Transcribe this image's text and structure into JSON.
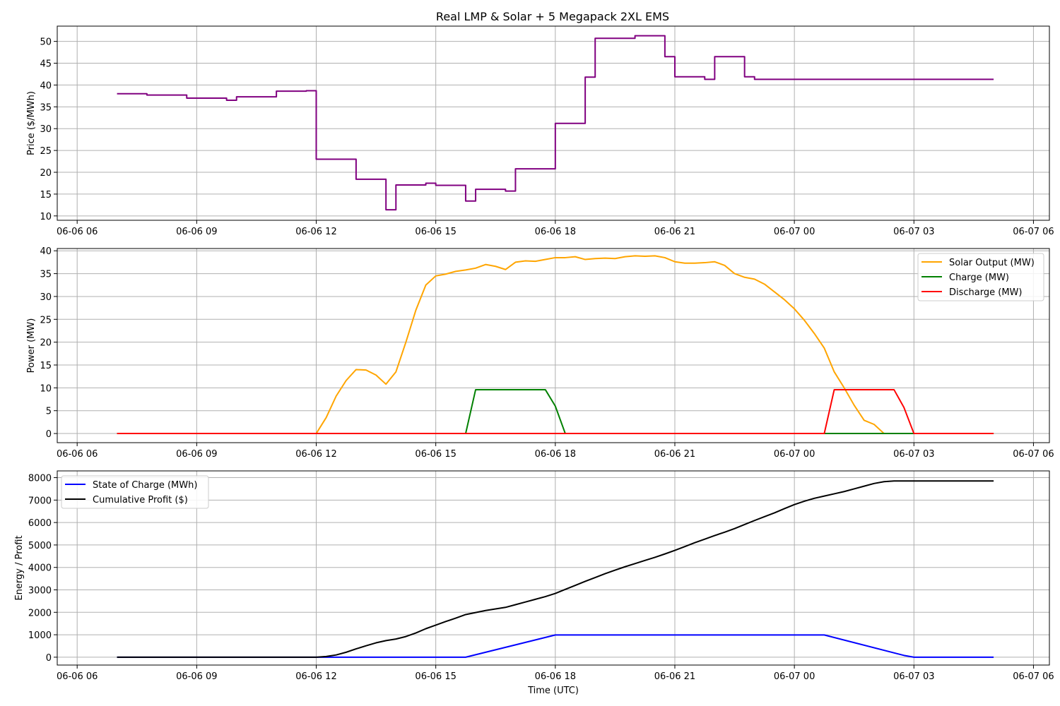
{
  "figure_title": "Real LMP & Solar + 5 Megapack 2XL EMS",
  "colors": {
    "price": "#800080",
    "solar": "#FFA500",
    "charge": "#008000",
    "discharge": "#FF0000",
    "soc": "#0000FF",
    "profit": "#000000",
    "grid": "#b0b0b0"
  },
  "chart_data": [
    {
      "type": "line",
      "title": "Real LMP & Solar + 5 Megapack 2XL EMS",
      "xlabel": "",
      "ylabel": "Price ($/MWh)",
      "x_unit": "hours from 06-06 06:00 UTC",
      "xlim": [
        -0.5,
        24.4
      ],
      "ylim": [
        9.0,
        53.5
      ],
      "x_ticks": [
        0,
        3,
        6,
        9,
        12,
        15,
        18,
        21,
        24
      ],
      "x_tick_labels": [
        "06-06 06",
        "06-06 09",
        "06-06 12",
        "06-06 15",
        "06-06 18",
        "06-06 21",
        "06-07 00",
        "06-07 03",
        "06-07 06"
      ],
      "y_ticks": [
        10,
        15,
        20,
        25,
        30,
        35,
        40,
        45,
        50
      ],
      "grid": true,
      "series": [
        {
          "key": "price",
          "x": [
            1.0,
            1.75,
            1.75,
            2.75,
            2.75,
            3.75,
            3.75,
            4.0,
            4.0,
            5.0,
            5.0,
            5.75,
            5.75,
            6.0,
            6.0,
            7.0,
            7.0,
            7.75,
            7.75,
            8.0,
            8.0,
            8.75,
            8.75,
            9.0,
            9.0,
            9.75,
            9.75,
            10.0,
            10.0,
            10.75,
            10.75,
            11.0,
            11.0,
            12.0,
            12.0,
            12.75,
            12.75,
            13.0,
            13.0,
            14.0,
            14.0,
            14.75,
            14.75,
            15.0,
            15.0,
            15.75,
            15.75,
            16.0,
            16.0,
            16.75,
            16.75,
            17.0,
            17.0,
            17.75,
            17.75,
            18.0,
            18.0,
            18.75,
            18.75,
            19.0,
            19.0,
            19.75,
            19.75,
            20.0,
            20.0,
            20.75,
            20.75,
            21.0,
            21.0,
            21.75,
            21.75,
            22.0,
            22.0,
            22.75,
            22.75,
            23.0,
            23.0
          ],
          "y": [
            38.0,
            38.0,
            37.7,
            37.7,
            37.0,
            37.0,
            36.5,
            36.5,
            37.3,
            37.3,
            38.6,
            38.6,
            38.7,
            38.7,
            23.0,
            23.0,
            18.4,
            18.4,
            11.4,
            11.4,
            17.1,
            17.1,
            17.5,
            17.5,
            17.0,
            17.0,
            13.4,
            13.4,
            16.1,
            16.1,
            15.7,
            15.7,
            20.8,
            20.8,
            31.2,
            31.2,
            41.8,
            41.8,
            50.7,
            50.7,
            51.3,
            51.3,
            46.5,
            46.5,
            41.9,
            41.9,
            41.3,
            41.3,
            46.5,
            46.5,
            41.9,
            41.9,
            41.3,
            41.3,
            41.3,
            41.3,
            41.3,
            41.3,
            41.3,
            41.3,
            41.3,
            41.3,
            41.3,
            41.3,
            41.3,
            41.3,
            41.3,
            41.3,
            41.3,
            41.3,
            41.3,
            41.3,
            41.3,
            41.3,
            41.3,
            41.3,
            41.3
          ]
        }
      ]
    },
    {
      "type": "line",
      "xlabel": "",
      "ylabel": "Power (MW)",
      "xlim": [
        -0.5,
        24.4
      ],
      "ylim": [
        -2.0,
        40.5
      ],
      "x_ticks": [
        0,
        3,
        6,
        9,
        12,
        15,
        18,
        21,
        24
      ],
      "x_tick_labels": [
        "06-06 06",
        "06-06 09",
        "06-06 12",
        "06-06 15",
        "06-06 18",
        "06-06 21",
        "06-07 00",
        "06-07 03",
        "06-07 06"
      ],
      "y_ticks": [
        0,
        5,
        10,
        15,
        20,
        25,
        30,
        35,
        40
      ],
      "grid": true,
      "legend_position": "top-right",
      "series": [
        {
          "key": "solar",
          "name": "Solar Output (MW)",
          "x": [
            1.0,
            6.0,
            6.25,
            6.5,
            6.75,
            7.0,
            7.25,
            7.5,
            7.75,
            8.0,
            8.25,
            8.5,
            8.75,
            9.0,
            9.25,
            9.5,
            9.75,
            10.0,
            10.25,
            10.5,
            10.75,
            11.0,
            11.25,
            11.5,
            11.75,
            12.0,
            12.25,
            12.5,
            12.75,
            13.0,
            13.25,
            13.5,
            13.75,
            14.0,
            14.25,
            14.5,
            14.75,
            15.0,
            15.25,
            15.5,
            15.75,
            16.0,
            16.25,
            16.5,
            16.75,
            17.0,
            17.25,
            17.5,
            17.75,
            18.0,
            18.25,
            18.5,
            18.75,
            19.0,
            19.25,
            19.5,
            19.75,
            20.0,
            20.25,
            20.5,
            20.75,
            21.0,
            21.25,
            21.5,
            21.75,
            22.0,
            23.0
          ],
          "y": [
            0,
            0,
            3.5,
            8.2,
            11.6,
            14.0,
            13.9,
            12.8,
            10.8,
            13.5,
            20.0,
            27.0,
            32.5,
            34.5,
            34.9,
            35.5,
            35.8,
            36.2,
            37.0,
            36.6,
            35.9,
            37.5,
            37.8,
            37.7,
            38.1,
            38.5,
            38.5,
            38.7,
            38.1,
            38.3,
            38.4,
            38.3,
            38.7,
            38.9,
            38.8,
            38.9,
            38.5,
            37.6,
            37.3,
            37.3,
            37.4,
            37.6,
            36.8,
            35.0,
            34.2,
            33.8,
            32.7,
            31.0,
            29.3,
            27.3,
            24.8,
            21.9,
            18.7,
            13.5,
            10.0,
            6.2,
            2.9,
            2.0,
            0,
            0,
            0,
            0,
            0,
            0,
            0,
            0,
            0
          ]
        },
        {
          "key": "charge",
          "name": "Charge (MW)",
          "x": [
            1.0,
            9.75,
            10.0,
            11.75,
            12.0,
            12.25,
            23.0
          ],
          "y": [
            0,
            0,
            9.6,
            9.6,
            6.0,
            0,
            0
          ]
        },
        {
          "key": "discharge",
          "name": "Discharge (MW)",
          "x": [
            1.0,
            18.75,
            19.0,
            20.5,
            20.75,
            21.0,
            23.0
          ],
          "y": [
            0,
            0,
            9.6,
            9.6,
            5.7,
            0,
            0
          ]
        }
      ]
    },
    {
      "type": "line",
      "xlabel": "Time (UTC)",
      "ylabel": "Energy / Profit",
      "xlim": [
        -0.5,
        24.4
      ],
      "ylim": [
        -350,
        8300
      ],
      "x_ticks": [
        0,
        3,
        6,
        9,
        12,
        15,
        18,
        21,
        24
      ],
      "x_tick_labels": [
        "06-06 06",
        "06-06 09",
        "06-06 12",
        "06-06 15",
        "06-06 18",
        "06-06 21",
        "06-07 00",
        "06-07 03",
        "06-07 06"
      ],
      "y_ticks": [
        0,
        1000,
        2000,
        3000,
        4000,
        5000,
        6000,
        7000,
        8000
      ],
      "grid": true,
      "legend_position": "top-left",
      "series": [
        {
          "key": "soc",
          "name": "State of Charge (MWh)",
          "x": [
            1.0,
            9.75,
            12.0,
            18.75,
            20.75,
            21.0,
            23.0
          ],
          "y": [
            0,
            0,
            990,
            990,
            80,
            0,
            0
          ]
        },
        {
          "key": "profit",
          "name": "Cumulative Profit ($)",
          "x": [
            1.0,
            6.0,
            6.25,
            6.5,
            6.75,
            7.0,
            7.25,
            7.5,
            7.75,
            8.0,
            8.25,
            8.5,
            8.75,
            9.0,
            9.25,
            9.5,
            9.75,
            10.0,
            10.25,
            10.5,
            10.75,
            11.0,
            11.25,
            11.5,
            11.75,
            12.0,
            12.25,
            12.5,
            12.75,
            13.0,
            13.25,
            13.5,
            13.75,
            14.0,
            14.25,
            14.5,
            14.75,
            15.0,
            15.25,
            15.5,
            15.75,
            16.0,
            16.25,
            16.5,
            16.75,
            17.0,
            17.25,
            17.5,
            17.75,
            18.0,
            18.25,
            18.5,
            18.75,
            19.0,
            19.25,
            19.5,
            19.75,
            20.0,
            20.25,
            20.5,
            20.75,
            21.0,
            23.0
          ],
          "y": [
            0,
            0,
            30,
            100,
            220,
            370,
            510,
            640,
            740,
            810,
            920,
            1080,
            1270,
            1430,
            1590,
            1740,
            1900,
            1990,
            2080,
            2150,
            2220,
            2340,
            2460,
            2580,
            2700,
            2840,
            3020,
            3200,
            3380,
            3550,
            3720,
            3880,
            4030,
            4170,
            4310,
            4450,
            4600,
            4760,
            4930,
            5100,
            5260,
            5420,
            5570,
            5730,
            5910,
            6090,
            6260,
            6430,
            6620,
            6800,
            6950,
            7080,
            7180,
            7280,
            7380,
            7500,
            7620,
            7740,
            7820,
            7850,
            7850,
            7850,
            7850
          ]
        }
      ]
    }
  ]
}
